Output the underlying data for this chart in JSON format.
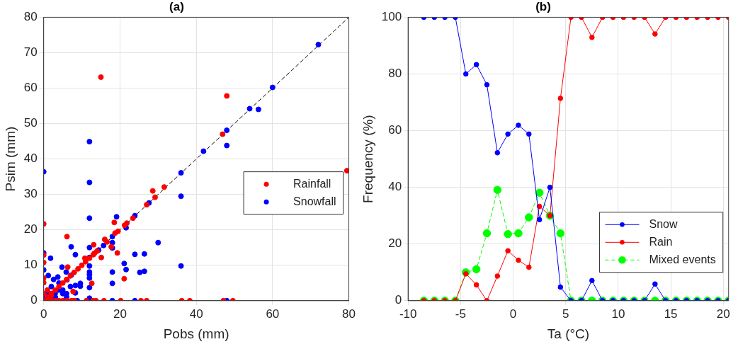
{
  "chart_data": [
    {
      "type": "scatter",
      "title": "(a)",
      "xlabel": "Pobs (mm)",
      "ylabel": "Psim (mm)",
      "xlim": [
        0,
        80
      ],
      "ylim": [
        0,
        80
      ],
      "xticks": [
        0,
        20,
        40,
        60,
        80
      ],
      "yticks": [
        0,
        10,
        20,
        30,
        40,
        50,
        60,
        70,
        80
      ],
      "grid": true,
      "legend": "right",
      "marker": "circle",
      "series": [
        {
          "name": "Rainfall",
          "color": "#ff0000",
          "x": [
            15,
            48,
            46.9,
            79.5,
            28.6,
            29.2,
            31.6,
            27,
            23.4,
            21.8,
            21.2,
            18.5,
            19.5,
            18.7,
            0,
            6.1,
            13.1,
            16,
            16.6,
            17.7,
            15.1,
            19.3,
            13.3,
            10.8,
            6.3,
            12.6,
            21.1,
            7.7,
            0,
            0,
            0,
            0,
            1,
            2,
            3,
            4,
            5,
            6,
            7,
            8,
            9,
            10,
            11,
            12,
            13,
            14,
            6.1,
            7.3,
            8,
            11.2,
            12.9,
            13.7,
            15.8,
            20.2,
            25.5,
            27,
            36.2,
            38.3,
            47.1,
            49.6,
            0,
            1,
            2,
            0,
            3,
            5,
            2,
            4,
            1
          ],
          "values": [
            63.1,
            57.8,
            47,
            36.7,
            31,
            29.2,
            32.1,
            27.1,
            23.3,
            21.9,
            21.3,
            22.1,
            19.6,
            19.1,
            21.7,
            18.1,
            15.8,
            17.3,
            16.6,
            15.2,
            12.2,
            13.5,
            13.4,
            12,
            9.5,
            4.9,
            6.2,
            2.6,
            12.9,
            10.8,
            6.4,
            5.1,
            1,
            2,
            3,
            4,
            5,
            6,
            7,
            8,
            9,
            10,
            11,
            12,
            13,
            14,
            0,
            0,
            0,
            0,
            0,
            0,
            0,
            0,
            0,
            0,
            0,
            0,
            0,
            0,
            0,
            0,
            0,
            2,
            0,
            0,
            1.5,
            0,
            3
          ]
        },
        {
          "name": "Snowfall",
          "color": "#0000ff",
          "x": [
            72,
            60,
            54,
            56.3,
            48,
            48,
            41.9,
            36,
            36,
            36,
            0,
            12,
            12,
            12,
            12,
            12,
            12,
            12,
            12,
            12,
            12,
            12,
            27.6,
            23.9,
            19.1,
            21.6,
            18,
            18,
            18,
            18,
            18,
            15.7,
            14.4,
            30,
            23.9,
            26.4,
            21.1,
            21.6,
            25.2,
            26.4,
            7.2,
            8.3,
            1.8,
            0,
            0,
            4.8,
            5.9,
            1.2,
            2.6,
            3.7,
            6.1,
            7.2,
            8.3,
            9.6,
            9.6,
            8.3,
            0,
            8.8,
            18,
            23.9,
            48,
            0,
            2,
            3,
            4,
            5,
            6,
            7,
            1,
            2,
            3,
            4,
            0,
            1,
            2,
            3,
            5,
            6
          ],
          "values": [
            72.3,
            60.2,
            54.2,
            54,
            48.1,
            43.8,
            42.2,
            36.1,
            29.5,
            9.8,
            36.4,
            44.9,
            33.4,
            23.3,
            15,
            12.2,
            9.8,
            8.1,
            7.4,
            6.4,
            3.7,
            0.7,
            27.6,
            24,
            23.7,
            20.6,
            18.1,
            16.4,
            14.9,
            8.1,
            4.9,
            15.6,
            14.3,
            16.4,
            13.1,
            13.2,
            10.5,
            8.8,
            8,
            8.3,
            15.2,
            13,
            12,
            13.5,
            8.7,
            9.5,
            8.1,
            7.1,
            6,
            6.7,
            5.9,
            7.2,
            4.3,
            4.9,
            4.1,
            2.2,
            0,
            0,
            0,
            0,
            0,
            1,
            2,
            1,
            3,
            2,
            1,
            4,
            3,
            4,
            2,
            5,
            2,
            2,
            1,
            1,
            3,
            2
          ]
        },
        {
          "type": "line",
          "color": "#000000",
          "line_style": "dashed",
          "marker": "none",
          "x": [
            0,
            80
          ],
          "values": [
            0,
            80
          ]
        }
      ]
    },
    {
      "type": "line",
      "title": "(b)",
      "xlabel": "Ta (°C)",
      "ylabel": "Frequency (%)",
      "xlim": [
        -10,
        20.5
      ],
      "ylim": [
        0,
        100
      ],
      "xticks": [
        -10,
        -5,
        0,
        5,
        10,
        15,
        20
      ],
      "yticks": [
        0,
        20,
        40,
        60,
        80,
        100
      ],
      "grid": true,
      "legend": "bottom right",
      "marker": "circle",
      "x": [
        -8.5,
        -7.5,
        -6.5,
        -5.5,
        -4.5,
        -3.5,
        -2.5,
        -1.5,
        -0.5,
        0.5,
        1.5,
        2.5,
        3.5,
        4.5,
        5.5,
        6.5,
        7.5,
        8.5,
        9.5,
        10.5,
        11.5,
        12.5,
        13.5,
        14.5,
        15.5,
        16.5,
        17.5,
        18.5,
        19.5,
        20.5
      ],
      "series": [
        {
          "name": "Snow",
          "color": "#0000ff",
          "line_style": "solid",
          "values": [
            100,
            100,
            100,
            100,
            80,
            83.3,
            76.2,
            52.2,
            58.8,
            61.9,
            58.8,
            28.6,
            40,
            4.8,
            0,
            0,
            7.1,
            0,
            0,
            0,
            0,
            0,
            5.9,
            0,
            0,
            0,
            0,
            0,
            0,
            0
          ]
        },
        {
          "name": "Rain",
          "color": "#ff0000",
          "line_style": "solid",
          "values": [
            0,
            0,
            0,
            0,
            9.5,
            5.6,
            0,
            8.7,
            17.6,
            14.3,
            11.8,
            33.3,
            30,
            71.4,
            100,
            100,
            92.9,
            100,
            100,
            100,
            100,
            100,
            94.1,
            100,
            100,
            100,
            100,
            100,
            100,
            100
          ]
        },
        {
          "name": "Mixed events",
          "color": "#00ff00",
          "line_style": "dashed",
          "values": [
            0,
            0,
            0,
            0,
            10,
            11.1,
            23.8,
            39.1,
            23.5,
            23.8,
            29.4,
            38.1,
            30,
            23.8,
            0,
            0,
            0,
            0,
            0,
            0,
            0,
            0,
            0,
            0,
            0,
            0,
            0,
            0,
            0,
            0
          ]
        }
      ]
    }
  ]
}
